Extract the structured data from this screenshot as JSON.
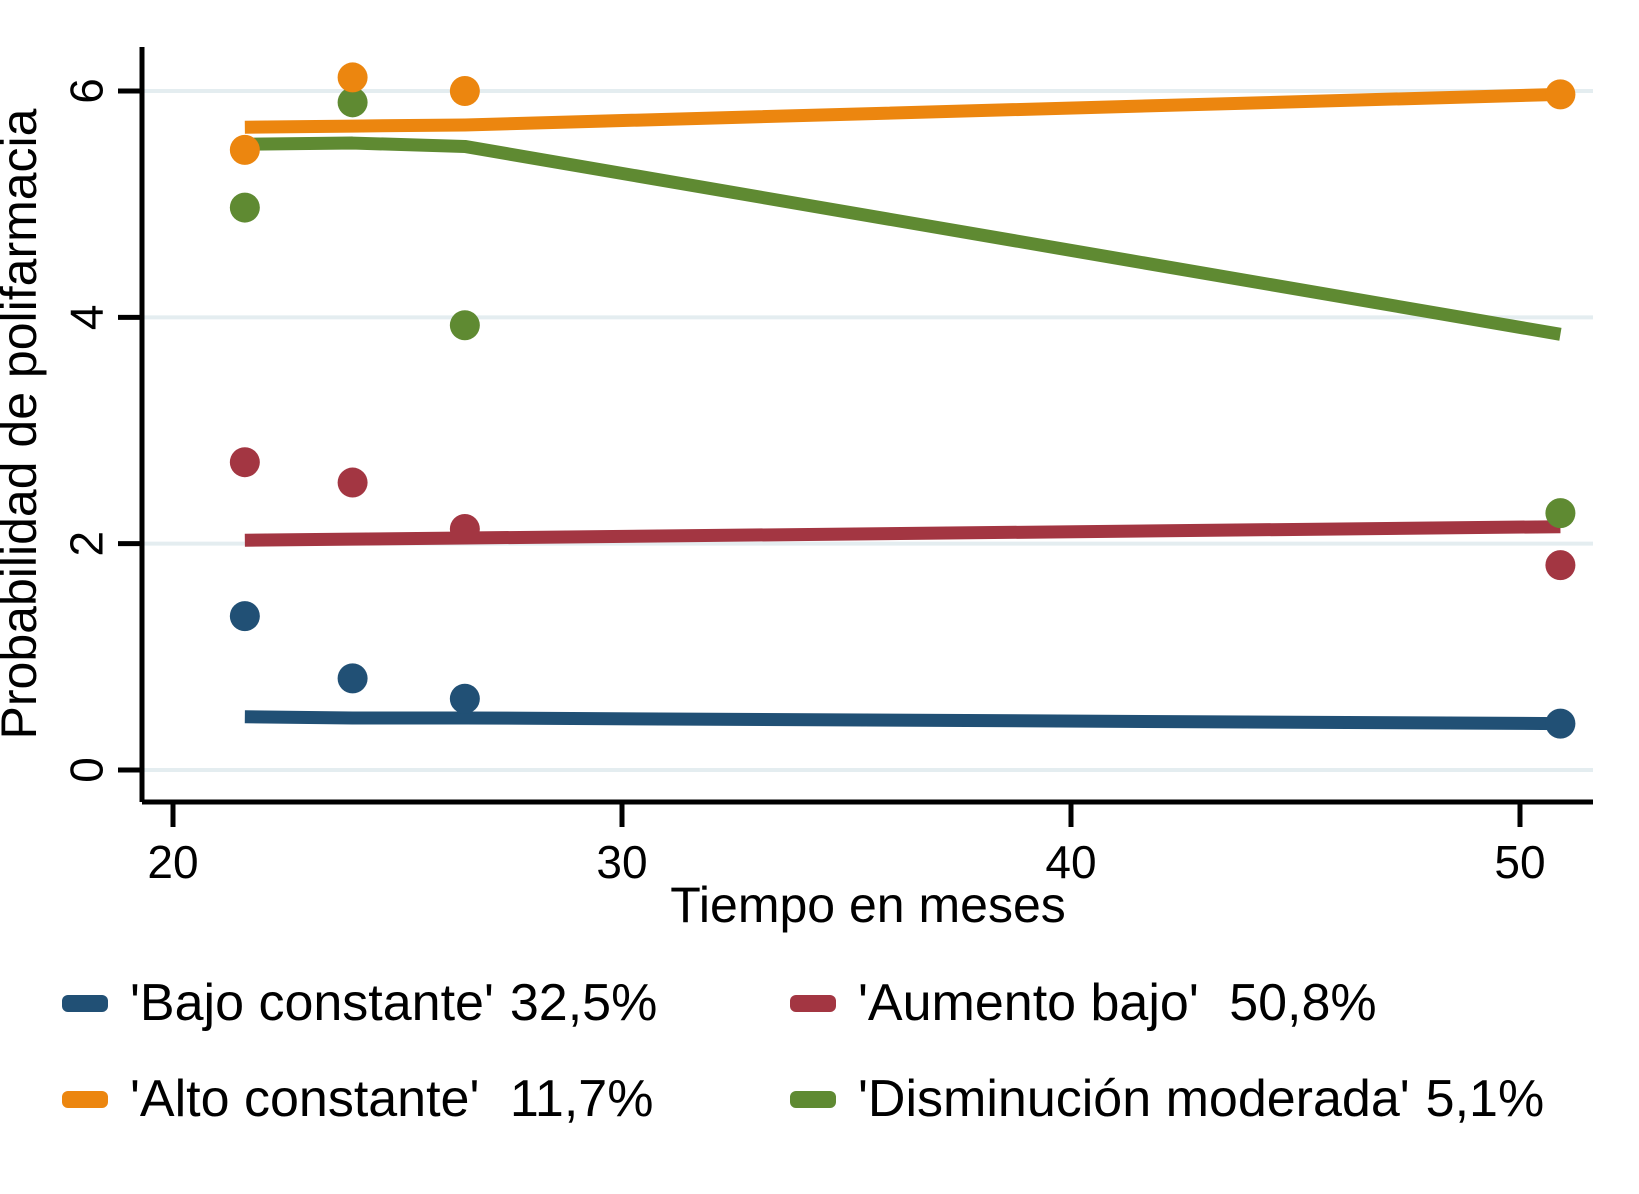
{
  "chart_data": {
    "type": "line",
    "xlabel": "Tiempo en meses",
    "ylabel": "Probabilidad de polifarmacia",
    "x_ticks": [
      20,
      30,
      40,
      50
    ],
    "y_ticks": [
      0,
      2,
      4,
      6
    ],
    "xlim": [
      19.3,
      51.6
    ],
    "ylim": [
      -0.3,
      6.4
    ],
    "grid": "horizontal-light",
    "gridline_color": "#E4EDF0",
    "axis_color": "#000000",
    "x": [
      21.6,
      24,
      26.5,
      50.9
    ],
    "series": [
      {
        "name": "'Bajo constante' 32,5%",
        "label": "'Bajo constante'",
        "pct": "32,5%",
        "color": "#215075",
        "line_values": [
          0.47,
          0.46,
          0.46,
          0.41
        ],
        "point_values": [
          1.36,
          0.81,
          0.63,
          0.41
        ]
      },
      {
        "name": "'Aumento bajo'  50,8%",
        "label": "'Aumento bajo'",
        "pct": "50,8%",
        "color": "#A33642",
        "line_values": [
          2.03,
          2.04,
          2.05,
          2.15
        ],
        "point_values": [
          2.72,
          2.54,
          2.13,
          1.81
        ]
      },
      {
        "name": "'Alto constante' 11,7%",
        "label": "'Alto constante'",
        "pct": "11,7%",
        "color": "#EC860F",
        "line_values": [
          5.68,
          5.69,
          5.7,
          5.97
        ],
        "point_values": [
          5.48,
          6.12,
          6.0,
          5.97
        ]
      },
      {
        "name": "'Disminución moderada' 5,1%",
        "label": "'Disminución moderada'",
        "pct": "5,1%",
        "color": "#5F8A32",
        "line_values": [
          5.53,
          5.54,
          5.51,
          3.85
        ],
        "point_values": [
          4.97,
          5.9,
          3.93,
          2.27
        ]
      }
    ],
    "legend_position": "bottom-two-columns"
  },
  "legend": {
    "items": [
      {
        "label": "'Bajo constante'",
        "pct": "32,5%",
        "color": "#215075"
      },
      {
        "label": "'Aumento bajo'",
        "pct": " 50,8%",
        "color": "#A33642"
      },
      {
        "label": "'Alto constante'",
        "pct": " 11,7%",
        "color": "#EC860F"
      },
      {
        "label": "'Disminución moderada'",
        "pct": "5,1%",
        "color": "#5F8A32"
      }
    ]
  }
}
